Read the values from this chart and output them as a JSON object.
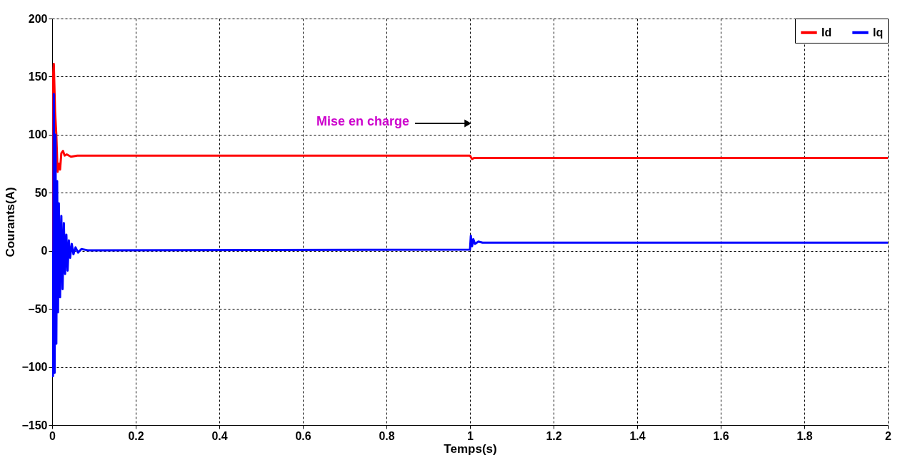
{
  "chart_data": {
    "type": "line",
    "xlabel": "Temps(s)",
    "ylabel": "Courants(A)",
    "xlim": [
      0,
      2
    ],
    "xticks": [
      0,
      0.2,
      0.4,
      0.6,
      0.8,
      1,
      1.2,
      1.4,
      1.6,
      1.8,
      2
    ],
    "ylim": [
      -150,
      200
    ],
    "yticks": [
      -150,
      -100,
      -50,
      0,
      50,
      100,
      150,
      200
    ],
    "grid": true,
    "legend": "top right",
    "marker": "none",
    "line_style": "solid",
    "annotations": [
      "Mise en charge"
    ],
    "series": [
      {
        "name": "Id",
        "color": "#ff0000",
        "x": [
          0,
          0.002,
          0.004,
          0.007,
          0.01,
          0.013,
          0.016,
          0.019,
          0.022,
          0.026,
          0.03,
          0.035,
          0.045,
          0.06,
          0.2,
          1.0,
          1.005,
          1.01,
          2.0
        ],
        "values": [
          0,
          150,
          161,
          120,
          100,
          68,
          75,
          70,
          84,
          86,
          82,
          83,
          81,
          82,
          82,
          82,
          79,
          80,
          80
        ]
      },
      {
        "name": "Iq",
        "color": "#0000ff",
        "x": [
          0,
          0.002,
          0.004,
          0.006,
          0.008,
          0.01,
          0.012,
          0.014,
          0.016,
          0.019,
          0.022,
          0.025,
          0.028,
          0.031,
          0.034,
          0.037,
          0.04,
          0.043,
          0.047,
          0.051,
          0.056,
          0.062,
          0.07,
          0.085,
          0.1,
          1.0,
          1.002,
          1.005,
          1.008,
          1.012,
          1.02,
          1.03,
          2.0
        ],
        "values": [
          0,
          -108,
          135,
          -105,
          100,
          -80,
          60,
          -53,
          41,
          -40,
          30,
          -33,
          24,
          -20,
          14,
          -17,
          9,
          -6,
          6,
          -3,
          3,
          -1.5,
          1.5,
          0.5,
          0.5,
          1,
          13,
          4,
          10,
          6,
          8,
          7,
          7
        ]
      }
    ]
  }
}
